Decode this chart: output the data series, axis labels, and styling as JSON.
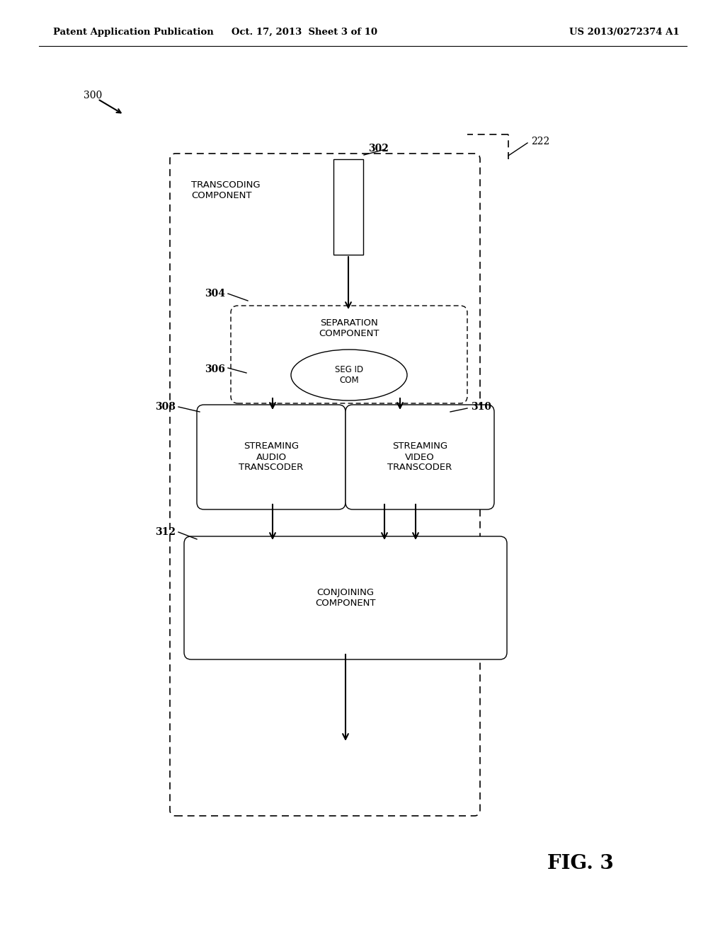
{
  "bg_color": "#ffffff",
  "text_color": "#000000",
  "header_left": "Patent Application Publication",
  "header_mid": "Oct. 17, 2013  Sheet 3 of 10",
  "header_right": "US 2013/0272374 A1",
  "fig_label": "FIG. 3",
  "label_300": "300",
  "label_222": "222",
  "label_302": "302",
  "label_304": "304",
  "label_306": "306",
  "label_308": "308",
  "label_310": "310",
  "label_312": "312",
  "transcoding_label": "TRANSCODING\nCOMPONENT",
  "sep_label": "SEPARATION\nCOMPONENT",
  "seg_label": "SEG ID\nCOM",
  "audio_label": "STREAMING\nAUDIO\nTRANSCODER",
  "video_label": "STREAMING\nVIDEO\nTRANSCODER",
  "conjoining_label": "CONJOINING\nCOMPONENT"
}
